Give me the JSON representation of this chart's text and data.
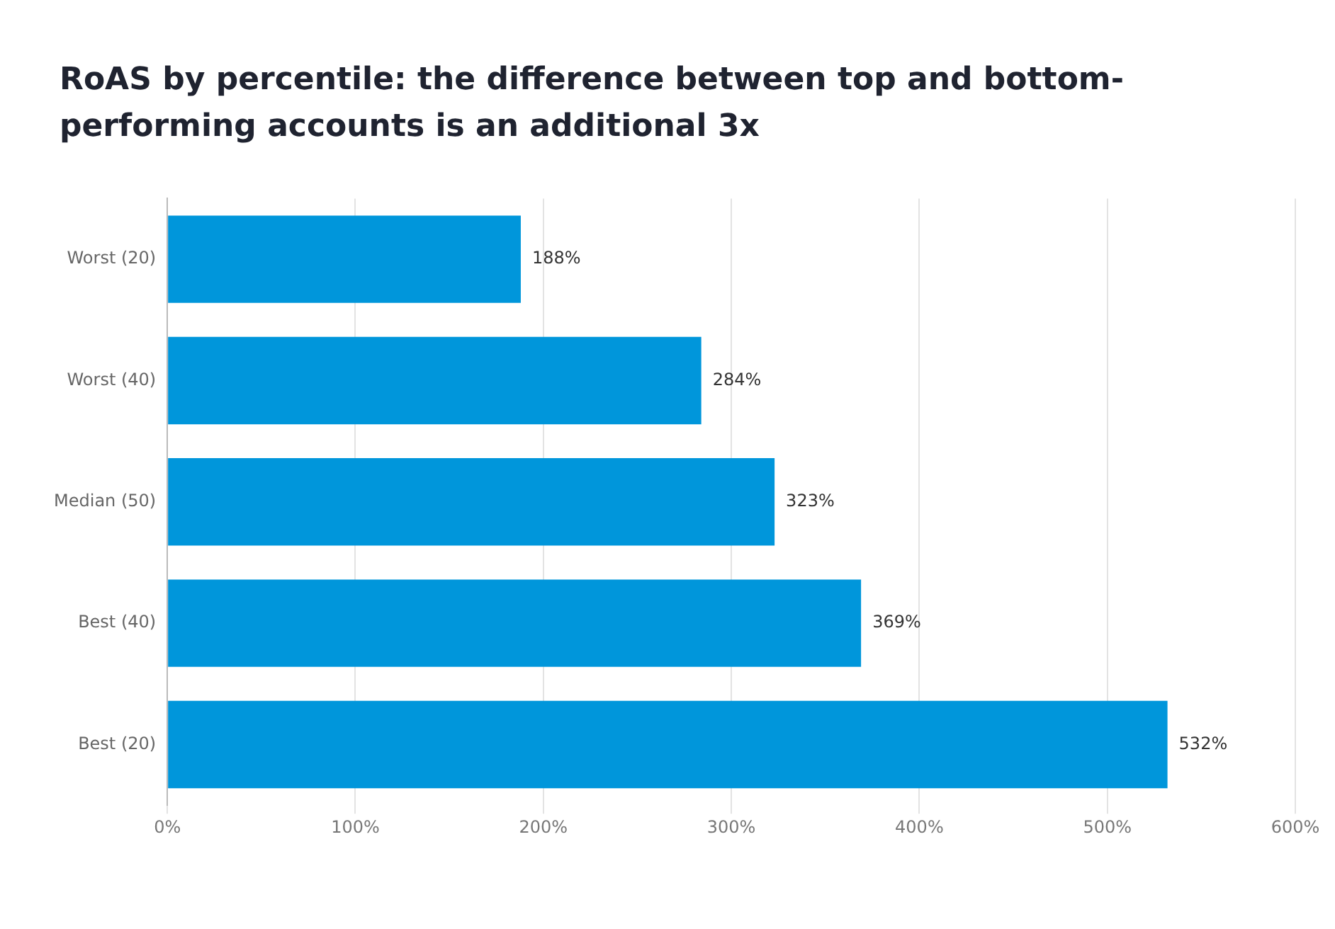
{
  "chart_data": {
    "type": "bar",
    "orientation": "horizontal",
    "title": "RoAS by percentile: the difference between top and bottom-performing accounts is an additional 3x",
    "categories": [
      "Worst (20)",
      "Worst (40)",
      "Median (50)",
      "Best (40)",
      "Best (20)"
    ],
    "values": [
      188,
      284,
      323,
      369,
      532
    ],
    "value_labels": [
      "188%",
      "284%",
      "323%",
      "369%",
      "532%"
    ],
    "color": "#0096db",
    "xlim": [
      0,
      600
    ],
    "xticks": [
      {
        "value": 0,
        "label": "0%"
      },
      {
        "value": 100,
        "label": "100%"
      },
      {
        "value": 200,
        "label": "200%"
      },
      {
        "value": 300,
        "label": "300%"
      },
      {
        "value": 400,
        "label": "400%"
      },
      {
        "value": 500,
        "label": "500%"
      },
      {
        "value": 600,
        "label": "600%"
      }
    ],
    "grid": "x",
    "legend": false
  }
}
